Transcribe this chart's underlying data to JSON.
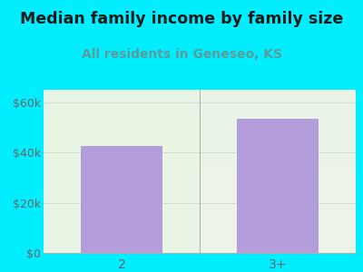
{
  "title": "Median family income by family size",
  "subtitle": "All residents in Geneseo, KS",
  "categories": [
    "2",
    "3+"
  ],
  "values": [
    42500,
    53500
  ],
  "bar_color": "#b39ddb",
  "ylim": [
    0,
    65000
  ],
  "yticks": [
    0,
    20000,
    40000,
    60000
  ],
  "ytick_labels": [
    "$0",
    "$20k",
    "$40k",
    "$60k"
  ],
  "title_fontsize": 12.5,
  "subtitle_fontsize": 10,
  "title_color": "#1a1a1a",
  "subtitle_color": "#5b9b9b",
  "tick_color": "#666666",
  "background_outer": "#00eeff",
  "plot_bg_color": "#e8f5e4",
  "divider_color": "#b0b0b0",
  "grid_color": "#d0d8d0",
  "spine_color": "#b0b0b0"
}
